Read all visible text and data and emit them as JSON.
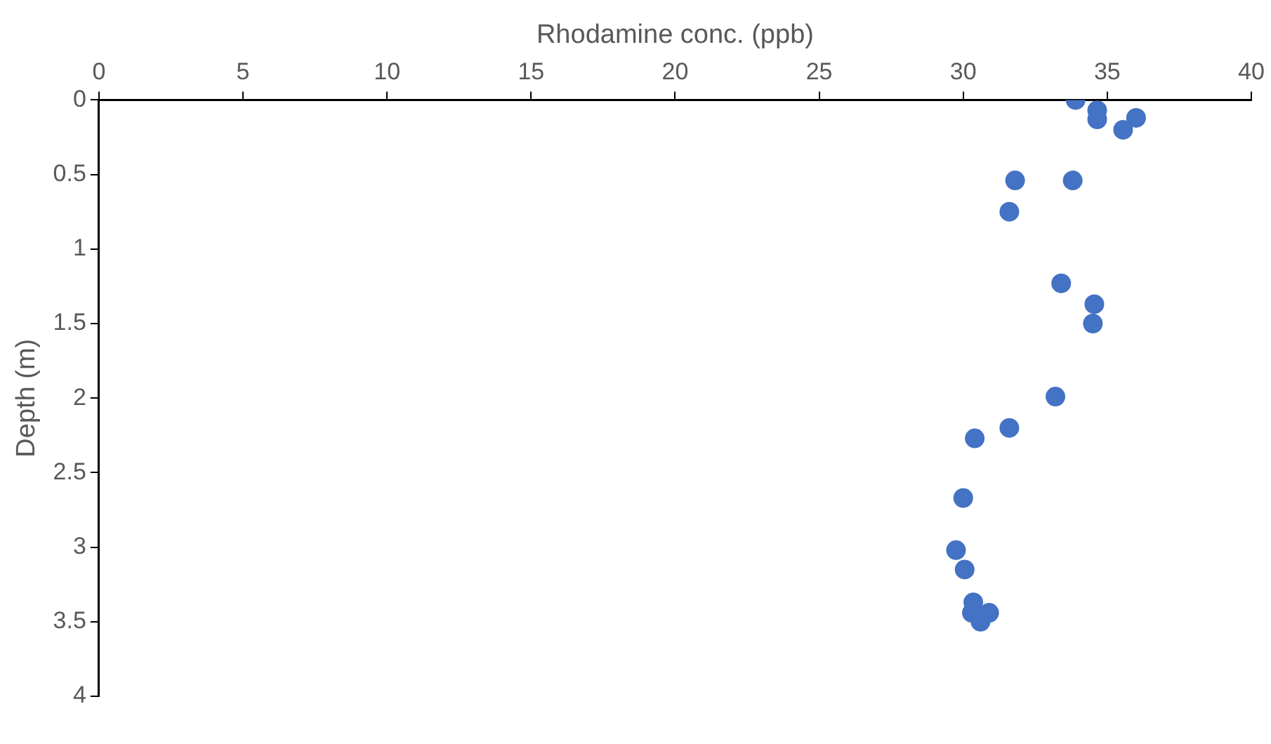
{
  "chart_data": {
    "type": "scatter",
    "xlabel": "Rhodamine conc. (ppb)",
    "ylabel": "Depth (m)",
    "x": [
      33.9,
      34.65,
      34.65,
      36.0,
      35.55,
      31.8,
      33.8,
      31.6,
      33.4,
      34.55,
      34.5,
      33.2,
      31.6,
      30.4,
      30.0,
      29.75,
      30.05,
      30.35,
      30.3,
      30.9,
      30.6
    ],
    "series": [
      {
        "color": "#4472c4",
        "values": [
          0,
          0.07,
          0.13,
          0.12,
          0.2,
          0.54,
          0.54,
          0.75,
          1.23,
          1.37,
          1.5,
          1.99,
          2.2,
          2.27,
          2.67,
          3.02,
          3.15,
          3.37,
          3.44,
          3.44,
          3.5
        ]
      }
    ],
    "xlim": [
      0,
      40
    ],
    "xticks": [
      0,
      5,
      10,
      15,
      20,
      25,
      30,
      35,
      40
    ],
    "ylim": [
      4,
      0
    ],
    "yticks": [
      0,
      0.5,
      1,
      1.5,
      2,
      2.5,
      3,
      3.5,
      4
    ],
    "grid": false,
    "legend": false,
    "marker": "circle"
  }
}
